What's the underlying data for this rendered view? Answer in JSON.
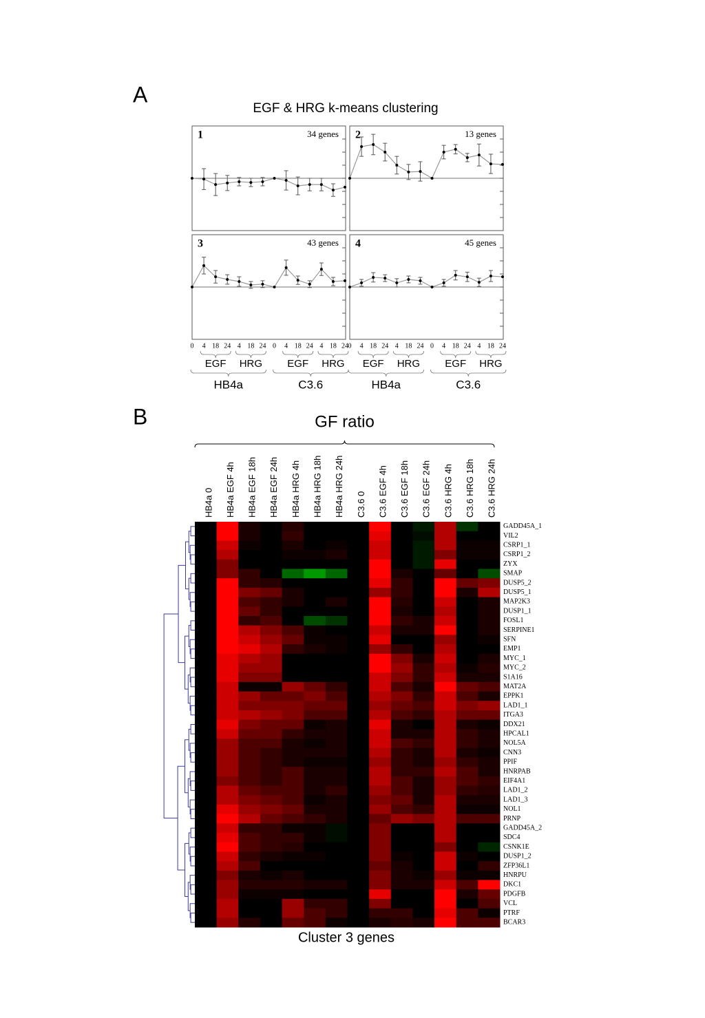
{
  "panel_a": {
    "label": "A",
    "title": "EGF & HRG k-means clustering"
  },
  "panel_b": {
    "label": "B"
  },
  "chart_data": [
    {
      "type": "line",
      "name": "1",
      "note": "34 genes",
      "categories": [
        null,
        null,
        null,
        null,
        null,
        null,
        null,
        null,
        null,
        null,
        null,
        null,
        null,
        null
      ],
      "values": [
        0,
        -0.03,
        -0.24,
        -0.18,
        -0.13,
        -0.16,
        -0.13,
        0,
        -0.08,
        -0.29,
        -0.24,
        -0.24,
        -0.45,
        -0.34
      ],
      "errors": [
        0,
        0.4,
        0.42,
        0.29,
        0.16,
        0.16,
        0.16,
        0,
        0.37,
        0.34,
        0.24,
        0.24,
        0.24,
        0
      ],
      "ylim": [
        -2,
        2
      ],
      "yticks": [
        -1.5,
        -1,
        -0.5,
        0,
        0.5,
        1,
        1.5
      ],
      "color": "#999999"
    },
    {
      "type": "line",
      "name": "2",
      "note": "13 genes",
      "categories": [
        null,
        null,
        null,
        null,
        null,
        null,
        null,
        null,
        null,
        null,
        null,
        null,
        null,
        null
      ],
      "values": [
        0,
        1.21,
        1.29,
        1.0,
        0.5,
        0.24,
        0.26,
        0,
        1.0,
        1.11,
        0.79,
        0.89,
        0.55,
        0.53
      ],
      "errors": [
        0,
        0.37,
        0.39,
        0.34,
        0.34,
        0.29,
        0.37,
        0,
        0.26,
        0.18,
        0.16,
        0.42,
        0.37,
        0
      ],
      "ylim": [
        -2,
        2
      ],
      "yticks": [
        -1.5,
        -1,
        -0.5,
        0,
        0.5,
        1,
        1.5
      ],
      "color": "#999999"
    },
    {
      "type": "line",
      "name": "3",
      "note": "43 genes",
      "categories": [
        "0",
        "4",
        "18",
        "24",
        "4",
        "18",
        "24",
        "0",
        "4",
        "18",
        "24",
        "4",
        "18",
        "24"
      ],
      "groups": [
        "EGF",
        "HRG",
        "EGF",
        "HRG"
      ],
      "cell_lines": [
        "HB4a",
        "C3.6"
      ],
      "values": [
        0,
        0.82,
        0.39,
        0.29,
        0.21,
        0.08,
        0.11,
        0,
        0.74,
        0.26,
        0.11,
        0.68,
        0.21,
        0.24
      ],
      "errors": [
        0,
        0.32,
        0.24,
        0.18,
        0.18,
        0.13,
        0.13,
        0,
        0.29,
        0.16,
        0.13,
        0.24,
        0.16,
        0
      ],
      "ylim": [
        -2,
        2
      ],
      "yticks": [
        -1.5,
        -1,
        -0.5,
        0,
        0.5,
        1,
        1.5
      ],
      "color": "#999999"
    },
    {
      "type": "line",
      "name": "4",
      "note": "45 genes",
      "categories": [
        "0",
        "4",
        "18",
        "24",
        "4",
        "18",
        "24",
        "0",
        "4",
        "18",
        "24",
        "4",
        "18",
        "24"
      ],
      "groups": [
        "EGF",
        "HRG",
        "EGF",
        "HRG"
      ],
      "cell_lines": [
        "HB4a",
        "C3.6"
      ],
      "values": [
        0,
        0.16,
        0.37,
        0.34,
        0.16,
        0.29,
        0.24,
        0,
        0.16,
        0.45,
        0.39,
        0.18,
        0.42,
        0.39
      ],
      "errors": [
        0,
        0.13,
        0.18,
        0.13,
        0.16,
        0.13,
        0.13,
        0,
        0.13,
        0.18,
        0.18,
        0.16,
        0.21,
        0
      ],
      "ylim": [
        -2,
        2
      ],
      "yticks": [
        -1.5,
        -1,
        -0.5,
        0,
        0.5,
        1,
        1.5
      ],
      "color": "#999999"
    },
    {
      "type": "heatmap",
      "title": "GF ratio",
      "xlabel": "Cluster 3 genes",
      "colors": {
        "positive": "#ff0000",
        "negative": "#00ff00"
      },
      "columns": [
        "HB4a 0",
        "HB4a EGF 4h",
        "HB4a EGF 18h",
        "HB4a EGF 24h",
        "HB4a HRG 4h",
        "HB4a HRG 18h",
        "HB4a HRG 24h",
        "C3.6 0",
        "C3.6 EGF 4h",
        "C3.6 EGF 18h",
        "C3.6 EGF 24h",
        "C3.6 HRG 4h",
        "C3.6 HRG 18h",
        "C3.6 HRG 24h"
      ],
      "rows": [
        "GADD45A_1",
        "VIL2",
        "CSRP1_1",
        "CSRP1_2",
        "ZYX",
        "SMAP",
        "DUSP5_2",
        "DUSP5_1",
        "MAP2K3",
        "DUSP1_1",
        "FOSL1",
        "SERPINE1",
        "SFN",
        "EMP1",
        "MYC_1",
        "MYC_2",
        "S1A16",
        "MAT2A",
        "EPPK1",
        "LAD1_1",
        "ITGA3",
        "DDX21",
        "HPCAL1",
        "NOL5A",
        "CNN3",
        "PPIF",
        "HNRPAB",
        "EIF4A1",
        "LAD1_2",
        "LAD1_3",
        "NOL1",
        "PRNP",
        "GADD45A_2",
        "SDC4",
        "CSNK1E",
        "DUSP1_2",
        "ZFP36L1",
        "HNRPU",
        "DKC1",
        "PDGFB",
        "VCL",
        "PTRF",
        "BCAR3"
      ],
      "values": [
        [
          0,
          1,
          0.1,
          0,
          0.15,
          0,
          0,
          0,
          1,
          0,
          -0.1,
          0.7,
          -0.2,
          0
        ],
        [
          0,
          1,
          0.1,
          0,
          0.2,
          0,
          0,
          0,
          0.9,
          0,
          -0.05,
          0.7,
          0,
          0
        ],
        [
          0,
          0.8,
          0.05,
          0,
          0.1,
          0,
          0.05,
          0,
          0.8,
          0,
          -0.1,
          0.7,
          0.05,
          0.05
        ],
        [
          0,
          0.7,
          0,
          0,
          0.05,
          0.05,
          0.1,
          0,
          0.8,
          0,
          -0.1,
          0.5,
          0.05,
          0.05
        ],
        [
          0,
          0.5,
          0,
          0,
          0,
          0,
          0,
          0,
          1,
          0,
          -0.1,
          0.9,
          0,
          0
        ],
        [
          0,
          0.5,
          0.2,
          0,
          -0.4,
          -0.6,
          -0.4,
          0,
          1,
          0.1,
          0,
          0.4,
          0,
          -0.3
        ],
        [
          0,
          1,
          0.2,
          0.15,
          0,
          0,
          0,
          0,
          0.9,
          0.2,
          0,
          1,
          0.4,
          0.5
        ],
        [
          0,
          1,
          0.5,
          0.4,
          0.1,
          0,
          0,
          0,
          0.6,
          0.2,
          0,
          1,
          0.1,
          0.7
        ],
        [
          0,
          1,
          0.3,
          0.2,
          0.1,
          0,
          0.1,
          0,
          1,
          0.15,
          0,
          0.8,
          0,
          0.1
        ],
        [
          0,
          1,
          0.4,
          0.2,
          0,
          0,
          0,
          0,
          1,
          0.1,
          0,
          0.7,
          0,
          0.1
        ],
        [
          0,
          1,
          0.2,
          0.3,
          0,
          -0.3,
          -0.2,
          0,
          1,
          0.2,
          0.1,
          0.8,
          0,
          0.1
        ],
        [
          0,
          1,
          0.7,
          0.5,
          0.3,
          0.05,
          0,
          0,
          0.8,
          0.1,
          0.1,
          1,
          0,
          0.1
        ],
        [
          0,
          1,
          0.8,
          0.6,
          0.4,
          0.05,
          0.05,
          0,
          0.9,
          0,
          0,
          0.6,
          0,
          0.05
        ],
        [
          0,
          1,
          0.9,
          0.7,
          0.2,
          0.1,
          0.05,
          0,
          0.6,
          0.2,
          0,
          0.7,
          0,
          0
        ],
        [
          0,
          0.9,
          0.7,
          0.6,
          0,
          0,
          0,
          0,
          1,
          0.5,
          0.1,
          0.8,
          0,
          0.1
        ],
        [
          0,
          0.9,
          0.6,
          0.6,
          0,
          0,
          0,
          0,
          1,
          0.6,
          0.2,
          0.7,
          0.05,
          0.15
        ],
        [
          0,
          0.9,
          0.5,
          0.5,
          0,
          0,
          0,
          0,
          0.8,
          0.5,
          0.2,
          0.8,
          0.1,
          0.1
        ],
        [
          0,
          0.8,
          0.05,
          0.05,
          0.6,
          0.4,
          0.2,
          0,
          0.8,
          0.3,
          0.1,
          1,
          0.4,
          0.3
        ],
        [
          0,
          0.8,
          0.6,
          0.4,
          0.4,
          0.5,
          0.3,
          0,
          0.7,
          0.5,
          0.2,
          0.8,
          0.3,
          0.1
        ],
        [
          0,
          0.8,
          0.5,
          0.5,
          0.5,
          0.4,
          0.4,
          0,
          0.6,
          0.4,
          0.3,
          0.8,
          0.5,
          0.6
        ],
        [
          0,
          0.8,
          0.7,
          0.6,
          0.5,
          0.3,
          0.3,
          0,
          0.7,
          0.3,
          0.2,
          0.7,
          0.4,
          0.4
        ],
        [
          0,
          0.9,
          0.5,
          0.4,
          0.4,
          0.05,
          0.1,
          0,
          0.9,
          0.1,
          0,
          0.7,
          0.1,
          0.05
        ],
        [
          0,
          0.8,
          0.4,
          0.4,
          0.2,
          0.1,
          0.1,
          0,
          0.8,
          0.1,
          0.1,
          0.7,
          0.2,
          0.1
        ],
        [
          0,
          0.6,
          0.3,
          0.3,
          0.1,
          0.05,
          0.1,
          0,
          0.8,
          0.3,
          0.2,
          0.7,
          0.2,
          0.1
        ],
        [
          0,
          0.6,
          0.3,
          0.2,
          0.1,
          0.1,
          0.1,
          0,
          0.7,
          0.2,
          0.1,
          0.7,
          0.1,
          0.05
        ],
        [
          0,
          0.6,
          0.3,
          0.2,
          0.1,
          0.05,
          0.05,
          0,
          0.6,
          0.2,
          0.1,
          0.6,
          0.2,
          0.1
        ],
        [
          0,
          0.6,
          0.3,
          0.2,
          0.3,
          0.1,
          0.1,
          0,
          0.7,
          0.2,
          0.2,
          0.7,
          0.3,
          0.1
        ],
        [
          0,
          0.5,
          0.3,
          0.2,
          0.3,
          0.1,
          0.1,
          0,
          0.7,
          0.3,
          0.1,
          0.6,
          0.3,
          0.2
        ],
        [
          0,
          0.7,
          0.4,
          0.3,
          0.3,
          0.1,
          0.2,
          0,
          0.6,
          0.3,
          0.1,
          0.6,
          0.2,
          0.15
        ],
        [
          0,
          0.7,
          0.5,
          0.4,
          0.3,
          0.05,
          0.1,
          0,
          0.5,
          0.4,
          0.1,
          0.7,
          0.1,
          0.1
        ],
        [
          0,
          0.9,
          0.6,
          0.5,
          0.4,
          0.1,
          0.1,
          0,
          0.6,
          0.3,
          0.2,
          0.7,
          0.05,
          0.05
        ],
        [
          0,
          1,
          0.7,
          0.4,
          0.3,
          0.2,
          0.1,
          0,
          0.4,
          0.6,
          0.5,
          0.7,
          0.3,
          0.3
        ],
        [
          0,
          0.8,
          0.2,
          0.2,
          0.05,
          0.05,
          -0.05,
          0,
          0.5,
          0,
          0,
          0.7,
          0,
          0
        ],
        [
          0,
          0.9,
          0.3,
          0.2,
          0.2,
          0.05,
          -0.05,
          0,
          0.5,
          0,
          0,
          0.7,
          0,
          0
        ],
        [
          0,
          1,
          0.3,
          0.2,
          0.15,
          0,
          0,
          0,
          0.5,
          0,
          0,
          0.5,
          0,
          -0.15
        ],
        [
          0,
          0.8,
          0.2,
          0.1,
          0.05,
          0.05,
          0,
          0,
          0.5,
          0.05,
          0,
          0.8,
          0.05,
          0
        ],
        [
          0,
          0.7,
          0.3,
          0,
          0,
          0,
          0,
          0,
          0.4,
          0.1,
          0,
          0.8,
          0,
          0.2
        ],
        [
          0,
          0.5,
          0.1,
          0.05,
          0.1,
          0,
          0,
          0,
          0.5,
          0.1,
          0.05,
          0.6,
          0.05,
          0.05
        ],
        [
          0,
          0.6,
          0.15,
          0.15,
          0.15,
          0.1,
          0.1,
          0,
          0.5,
          0.1,
          0.1,
          0.8,
          0.3,
          1
        ],
        [
          0,
          0.6,
          0.05,
          0.05,
          0.05,
          0,
          0,
          0,
          0.9,
          0,
          0,
          1,
          0.1,
          0.4
        ],
        [
          0,
          0.7,
          0,
          0,
          0.6,
          0.2,
          0.2,
          0,
          0.5,
          0,
          0,
          1,
          0,
          0.3
        ],
        [
          0,
          0.7,
          0,
          0,
          0.6,
          0.3,
          0.2,
          0,
          0.2,
          0.2,
          0,
          0.9,
          0.3,
          0.05
        ],
        [
          0,
          0.6,
          0.15,
          0,
          0.4,
          0.3,
          0.05,
          0,
          0.1,
          0.15,
          0.1,
          1,
          0.3,
          0.3
        ]
      ]
    }
  ]
}
